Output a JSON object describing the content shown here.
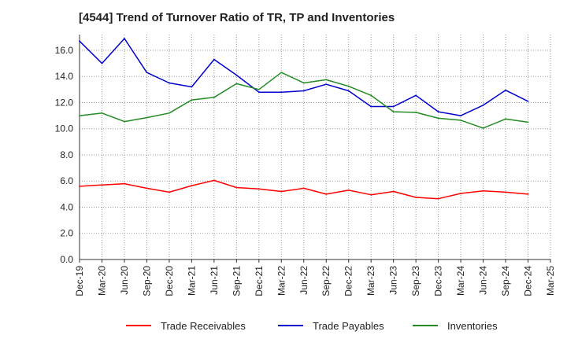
{
  "chart_data": {
    "type": "line",
    "title": "[4544]  Trend of Turnover Ratio of TR, TP and Inventories",
    "x_tick_labels": [
      "Dec-19",
      "Mar-20",
      "Jun-20",
      "Sep-20",
      "Dec-20",
      "Mar-21",
      "Jun-21",
      "Sep-21",
      "Dec-21",
      "Mar-22",
      "Jun-22",
      "Sep-22",
      "Dec-22",
      "Mar-23",
      "Jun-23",
      "Sep-23",
      "Dec-23",
      "Mar-24",
      "Jun-24",
      "Sep-24",
      "Dec-24",
      "Mar-25"
    ],
    "x": [
      "Dec-19",
      "Mar-20",
      "Jun-20",
      "Sep-20",
      "Dec-20",
      "Mar-21",
      "Jun-21",
      "Sep-21",
      "Dec-21",
      "Mar-22",
      "Jun-22",
      "Sep-22",
      "Dec-22",
      "Mar-23",
      "Jun-23",
      "Sep-23",
      "Dec-23",
      "Mar-24",
      "Jun-24",
      "Sep-24",
      "Dec-24"
    ],
    "ylim": [
      0,
      17.2
    ],
    "y_ticks": [
      "0.0",
      "2.0",
      "4.0",
      "6.0",
      "8.0",
      "10.0",
      "12.0",
      "14.0",
      "16.0"
    ],
    "grid": true,
    "legend_position": "bottom",
    "series": [
      {
        "name": "Trade Receivables",
        "color": "#ff0000",
        "values": [
          5.6,
          5.7,
          5.8,
          5.45,
          5.15,
          5.65,
          6.05,
          5.5,
          5.4,
          5.2,
          5.45,
          5.0,
          5.3,
          4.95,
          5.2,
          4.75,
          4.65,
          5.05,
          5.25,
          5.15,
          5.0
        ]
      },
      {
        "name": "Trade Payables",
        "color": "#0000cc",
        "values": [
          16.7,
          15.0,
          16.9,
          14.3,
          13.5,
          13.2,
          15.3,
          14.1,
          12.8,
          12.8,
          12.9,
          13.4,
          12.9,
          11.7,
          11.7,
          12.55,
          11.3,
          11.0,
          11.8,
          12.95,
          12.1
        ]
      },
      {
        "name": "Inventories",
        "color": "#228b22",
        "values": [
          11.0,
          11.2,
          10.55,
          10.85,
          11.2,
          12.2,
          12.4,
          13.45,
          13.0,
          14.3,
          13.5,
          13.75,
          13.25,
          12.55,
          11.3,
          11.25,
          10.8,
          10.65,
          10.05,
          10.75,
          10.5
        ]
      }
    ]
  }
}
